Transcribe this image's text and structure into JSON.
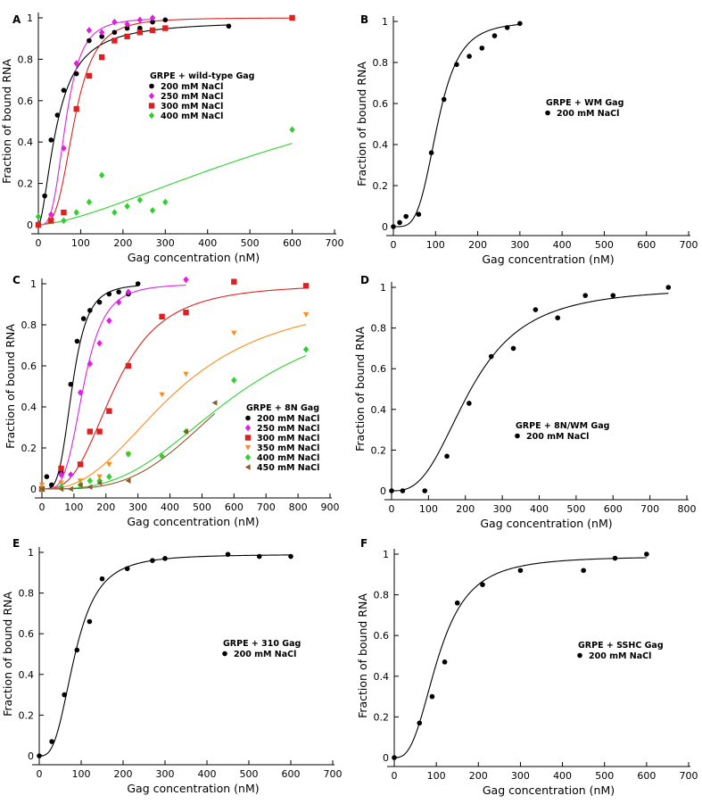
{
  "chart_data": [
    {
      "type": "scatter",
      "panel": "A",
      "xlabel": "Gag concentration (nM)",
      "ylabel": "Fraction of bound RNA",
      "xlim": [
        0,
        700
      ],
      "ylim": [
        0,
        1
      ],
      "xticks": [
        "0",
        "100",
        "200",
        "300",
        "400",
        "500",
        "600",
        "700"
      ],
      "yticks": [
        "0",
        "0.2",
        "0.4",
        "0.6",
        "0.8",
        "1"
      ],
      "legend_title": "GRPE + wild-type Gag",
      "legend_position": "center-right",
      "series": [
        {
          "name": "200 mM NaCl",
          "color": "#000000",
          "marker": "circle",
          "x": [
            0,
            15,
            30,
            45,
            60,
            90,
            120,
            150,
            180,
            210,
            240,
            270,
            300,
            450
          ],
          "y": [
            0,
            0.14,
            0.41,
            0.53,
            0.65,
            0.73,
            0.89,
            0.91,
            0.93,
            0.95,
            0.95,
            0.98,
            0.99,
            0.96
          ],
          "fit": {
            "kd": 45,
            "n": 1.7,
            "max": 0.985
          }
        },
        {
          "name": "250 mM NaCl",
          "color": "#e020e0",
          "marker": "diamond",
          "x": [
            30,
            60,
            90,
            120,
            150,
            180,
            210,
            240,
            270
          ],
          "y": [
            0.05,
            0.37,
            0.78,
            0.94,
            0.93,
            0.98,
            0.97,
            0.99,
            1.0
          ],
          "fit": {
            "kd": 65,
            "n": 3.5,
            "max": 1.0
          }
        },
        {
          "name": "300 mM NaCl",
          "color": "#e02020",
          "marker": "square",
          "x": [
            0,
            30,
            60,
            90,
            120,
            150,
            180,
            210,
            240,
            270,
            300,
            600
          ],
          "y": [
            0,
            0.02,
            0.06,
            0.56,
            0.72,
            0.81,
            0.89,
            0.91,
            0.93,
            0.94,
            0.95,
            1.0
          ],
          "fit": {
            "kd": 85,
            "n": 3.5,
            "max": 1.0
          }
        },
        {
          "name": "400 mM NaCl",
          "color": "#30d030",
          "marker": "diamond",
          "x": [
            0,
            60,
            90,
            120,
            150,
            180,
            210,
            240,
            270,
            300,
            600
          ],
          "y": [
            0.04,
            0.02,
            0.06,
            0.11,
            0.24,
            0.06,
            0.09,
            0.12,
            0.07,
            0.11,
            0.46
          ],
          "fit": {
            "kd": 800,
            "n": 1.5,
            "max": 1.0
          }
        }
      ]
    },
    {
      "type": "scatter",
      "panel": "B",
      "xlabel": "Gag concentration (nM)",
      "ylabel": "Fraction of bound RNA",
      "xlim": [
        0,
        700
      ],
      "ylim": [
        0,
        1
      ],
      "xticks": [
        "0",
        "100",
        "200",
        "300",
        "400",
        "500",
        "600",
        "700"
      ],
      "yticks": [
        "0",
        "0.2",
        "0.4",
        "0.6",
        "0.8",
        "1"
      ],
      "legend_title": "GRPE + WM Gag",
      "legend_position": "center-right",
      "series": [
        {
          "name": "200 mM NaCl",
          "color": "#000000",
          "marker": "circle",
          "x": [
            0,
            15,
            30,
            60,
            90,
            120,
            150,
            180,
            210,
            240,
            270,
            300
          ],
          "y": [
            0,
            0.02,
            0.05,
            0.06,
            0.36,
            0.62,
            0.79,
            0.83,
            0.87,
            0.93,
            0.97,
            0.99
          ],
          "fit": {
            "kd": 105,
            "n": 4,
            "max": 1.0
          }
        }
      ]
    },
    {
      "type": "scatter",
      "panel": "C",
      "xlabel": "Gag concentration (nM)",
      "ylabel": "Fraction of bound RNA",
      "xlim": [
        0,
        900
      ],
      "ylim": [
        0,
        1
      ],
      "xticks": [
        "0",
        "100",
        "200",
        "300",
        "400",
        "500",
        "600",
        "700",
        "800",
        "900"
      ],
      "yticks": [
        "0",
        "0.2",
        "0.4",
        "0.6",
        "0.8",
        "1"
      ],
      "legend_title": "GRPE + 8N Gag",
      "legend_position": "center-right",
      "series": [
        {
          "name": "200 mM NaCl",
          "color": "#000000",
          "marker": "circle",
          "x": [
            0,
            15,
            30,
            60,
            90,
            110,
            130,
            150,
            180,
            210,
            240,
            270,
            300
          ],
          "y": [
            0,
            0.06,
            0.02,
            0.08,
            0.51,
            0.72,
            0.83,
            0.87,
            0.91,
            0.95,
            0.96,
            0.95,
            1.0
          ],
          "fit": {
            "kd": 95,
            "n": 4,
            "max": 1.0
          }
        },
        {
          "name": "250 mM NaCl",
          "color": "#e020e0",
          "marker": "diamond",
          "x": [
            0,
            60,
            90,
            120,
            150,
            180,
            210,
            240,
            270,
            450
          ],
          "y": [
            0,
            0.07,
            0.07,
            0.47,
            0.61,
            0.71,
            0.82,
            0.91,
            0.96,
            1.02
          ],
          "fit": {
            "kd": 130,
            "n": 4,
            "max": 1.0
          }
        },
        {
          "name": "300 mM NaCl",
          "color": "#e02020",
          "marker": "square",
          "x": [
            0,
            60,
            120,
            150,
            180,
            210,
            270,
            375,
            450,
            600,
            825
          ],
          "y": [
            0,
            0.1,
            0.12,
            0.28,
            0.28,
            0.38,
            0.6,
            0.84,
            0.86,
            1.01,
            0.99
          ],
          "fit": {
            "kd": 230,
            "n": 3,
            "max": 1.0
          }
        },
        {
          "name": "350 mM NaCl",
          "color": "#ff8c1a",
          "marker": "triangle-down",
          "x": [
            0,
            60,
            120,
            180,
            210,
            270,
            375,
            450,
            600,
            825
          ],
          "y": [
            0.02,
            0.03,
            0.04,
            0.06,
            0.12,
            0.17,
            0.46,
            0.56,
            0.76,
            0.85
          ],
          "fit": {
            "kd": 420,
            "n": 2.5,
            "max": 0.95
          }
        },
        {
          "name": "400 mM NaCl",
          "color": "#30d030",
          "marker": "diamond",
          "x": [
            0,
            60,
            120,
            150,
            180,
            210,
            270,
            375,
            450,
            600,
            825
          ],
          "y": [
            0,
            0.01,
            0.02,
            0.04,
            0.04,
            0.06,
            0.17,
            0.16,
            0.28,
            0.53,
            0.68
          ],
          "fit": {
            "kd": 600,
            "n": 3,
            "max": 0.9
          }
        },
        {
          "name": "450 mM NaCl",
          "color": "#8b5a2b",
          "marker": "triangle-left",
          "x": [
            0,
            60,
            90,
            120,
            150,
            180,
            270,
            450,
            540
          ],
          "y": [
            0,
            0.0,
            0.0,
            0.02,
            0.01,
            0.03,
            0.04,
            0.28,
            0.42
          ],
          "fit": {
            "kd": 600,
            "n": 3.5,
            "max": 0.9,
            "xmax": 540
          }
        }
      ]
    },
    {
      "type": "scatter",
      "panel": "D",
      "xlabel": "Gag concentration (nM)",
      "ylabel": "Fraction of bound RNA",
      "xlim": [
        0,
        800
      ],
      "ylim": [
        0,
        1
      ],
      "xticks": [
        "0",
        "100",
        "200",
        "300",
        "400",
        "500",
        "600",
        "700",
        "800"
      ],
      "yticks": [
        "0",
        "0.2",
        "0.4",
        "0.6",
        "0.8",
        "1"
      ],
      "legend_title": "GRPE + 8N/WM Gag",
      "legend_position": "center-right",
      "series": [
        {
          "name": "200 mM NaCl",
          "color": "#000000",
          "marker": "circle",
          "x": [
            0,
            30,
            90,
            150,
            210,
            270,
            330,
            390,
            450,
            525,
            600,
            750
          ],
          "y": [
            0,
            0.0,
            0.0,
            0.17,
            0.43,
            0.66,
            0.7,
            0.89,
            0.85,
            0.96,
            0.96,
            1.0
          ],
          "fit": {
            "kd": 215,
            "n": 2.8,
            "max": 1.0
          }
        }
      ]
    },
    {
      "type": "scatter",
      "panel": "E",
      "xlabel": "Gag concentration (nM)",
      "ylabel": "Fraction of bound RNA",
      "xlim": [
        0,
        700
      ],
      "ylim": [
        0,
        1
      ],
      "xticks": [
        "0",
        "100",
        "200",
        "300",
        "400",
        "500",
        "600",
        "700"
      ],
      "yticks": [
        "0",
        "0.2",
        "0.4",
        "0.6",
        "0.8",
        "1"
      ],
      "legend_title": "GRPE + 310 Gag",
      "legend_position": "center-right",
      "series": [
        {
          "name": "200 mM NaCl",
          "color": "#000000",
          "marker": "circle",
          "x": [
            0,
            30,
            60,
            90,
            120,
            150,
            210,
            270,
            300,
            450,
            525,
            600
          ],
          "y": [
            0,
            0.07,
            0.3,
            0.52,
            0.66,
            0.87,
            0.92,
            0.96,
            0.97,
            0.99,
            0.98,
            0.98
          ],
          "fit": {
            "kd": 85,
            "n": 3,
            "max": 0.99
          }
        }
      ]
    },
    {
      "type": "scatter",
      "panel": "F",
      "xlabel": "Gag concentration (nM)",
      "ylabel": "Fraction of bound RNA",
      "xlim": [
        0,
        700
      ],
      "ylim": [
        0,
        1
      ],
      "xticks": [
        "0",
        "100",
        "200",
        "300",
        "400",
        "500",
        "600",
        "700"
      ],
      "yticks": [
        "0",
        "0.2",
        "0.4",
        "0.6",
        "0.8",
        "1"
      ],
      "legend_title": "GRPE + SSHC Gag",
      "legend_position": "center-right",
      "series": [
        {
          "name": "200 mM NaCl",
          "color": "#000000",
          "marker": "circle",
          "x": [
            0,
            60,
            90,
            120,
            150,
            210,
            300,
            450,
            525,
            600
          ],
          "y": [
            0,
            0.17,
            0.3,
            0.47,
            0.76,
            0.85,
            0.92,
            0.92,
            0.98,
            1.0
          ],
          "fit": {
            "kd": 105,
            "n": 2.8,
            "max": 0.99
          }
        }
      ]
    }
  ]
}
